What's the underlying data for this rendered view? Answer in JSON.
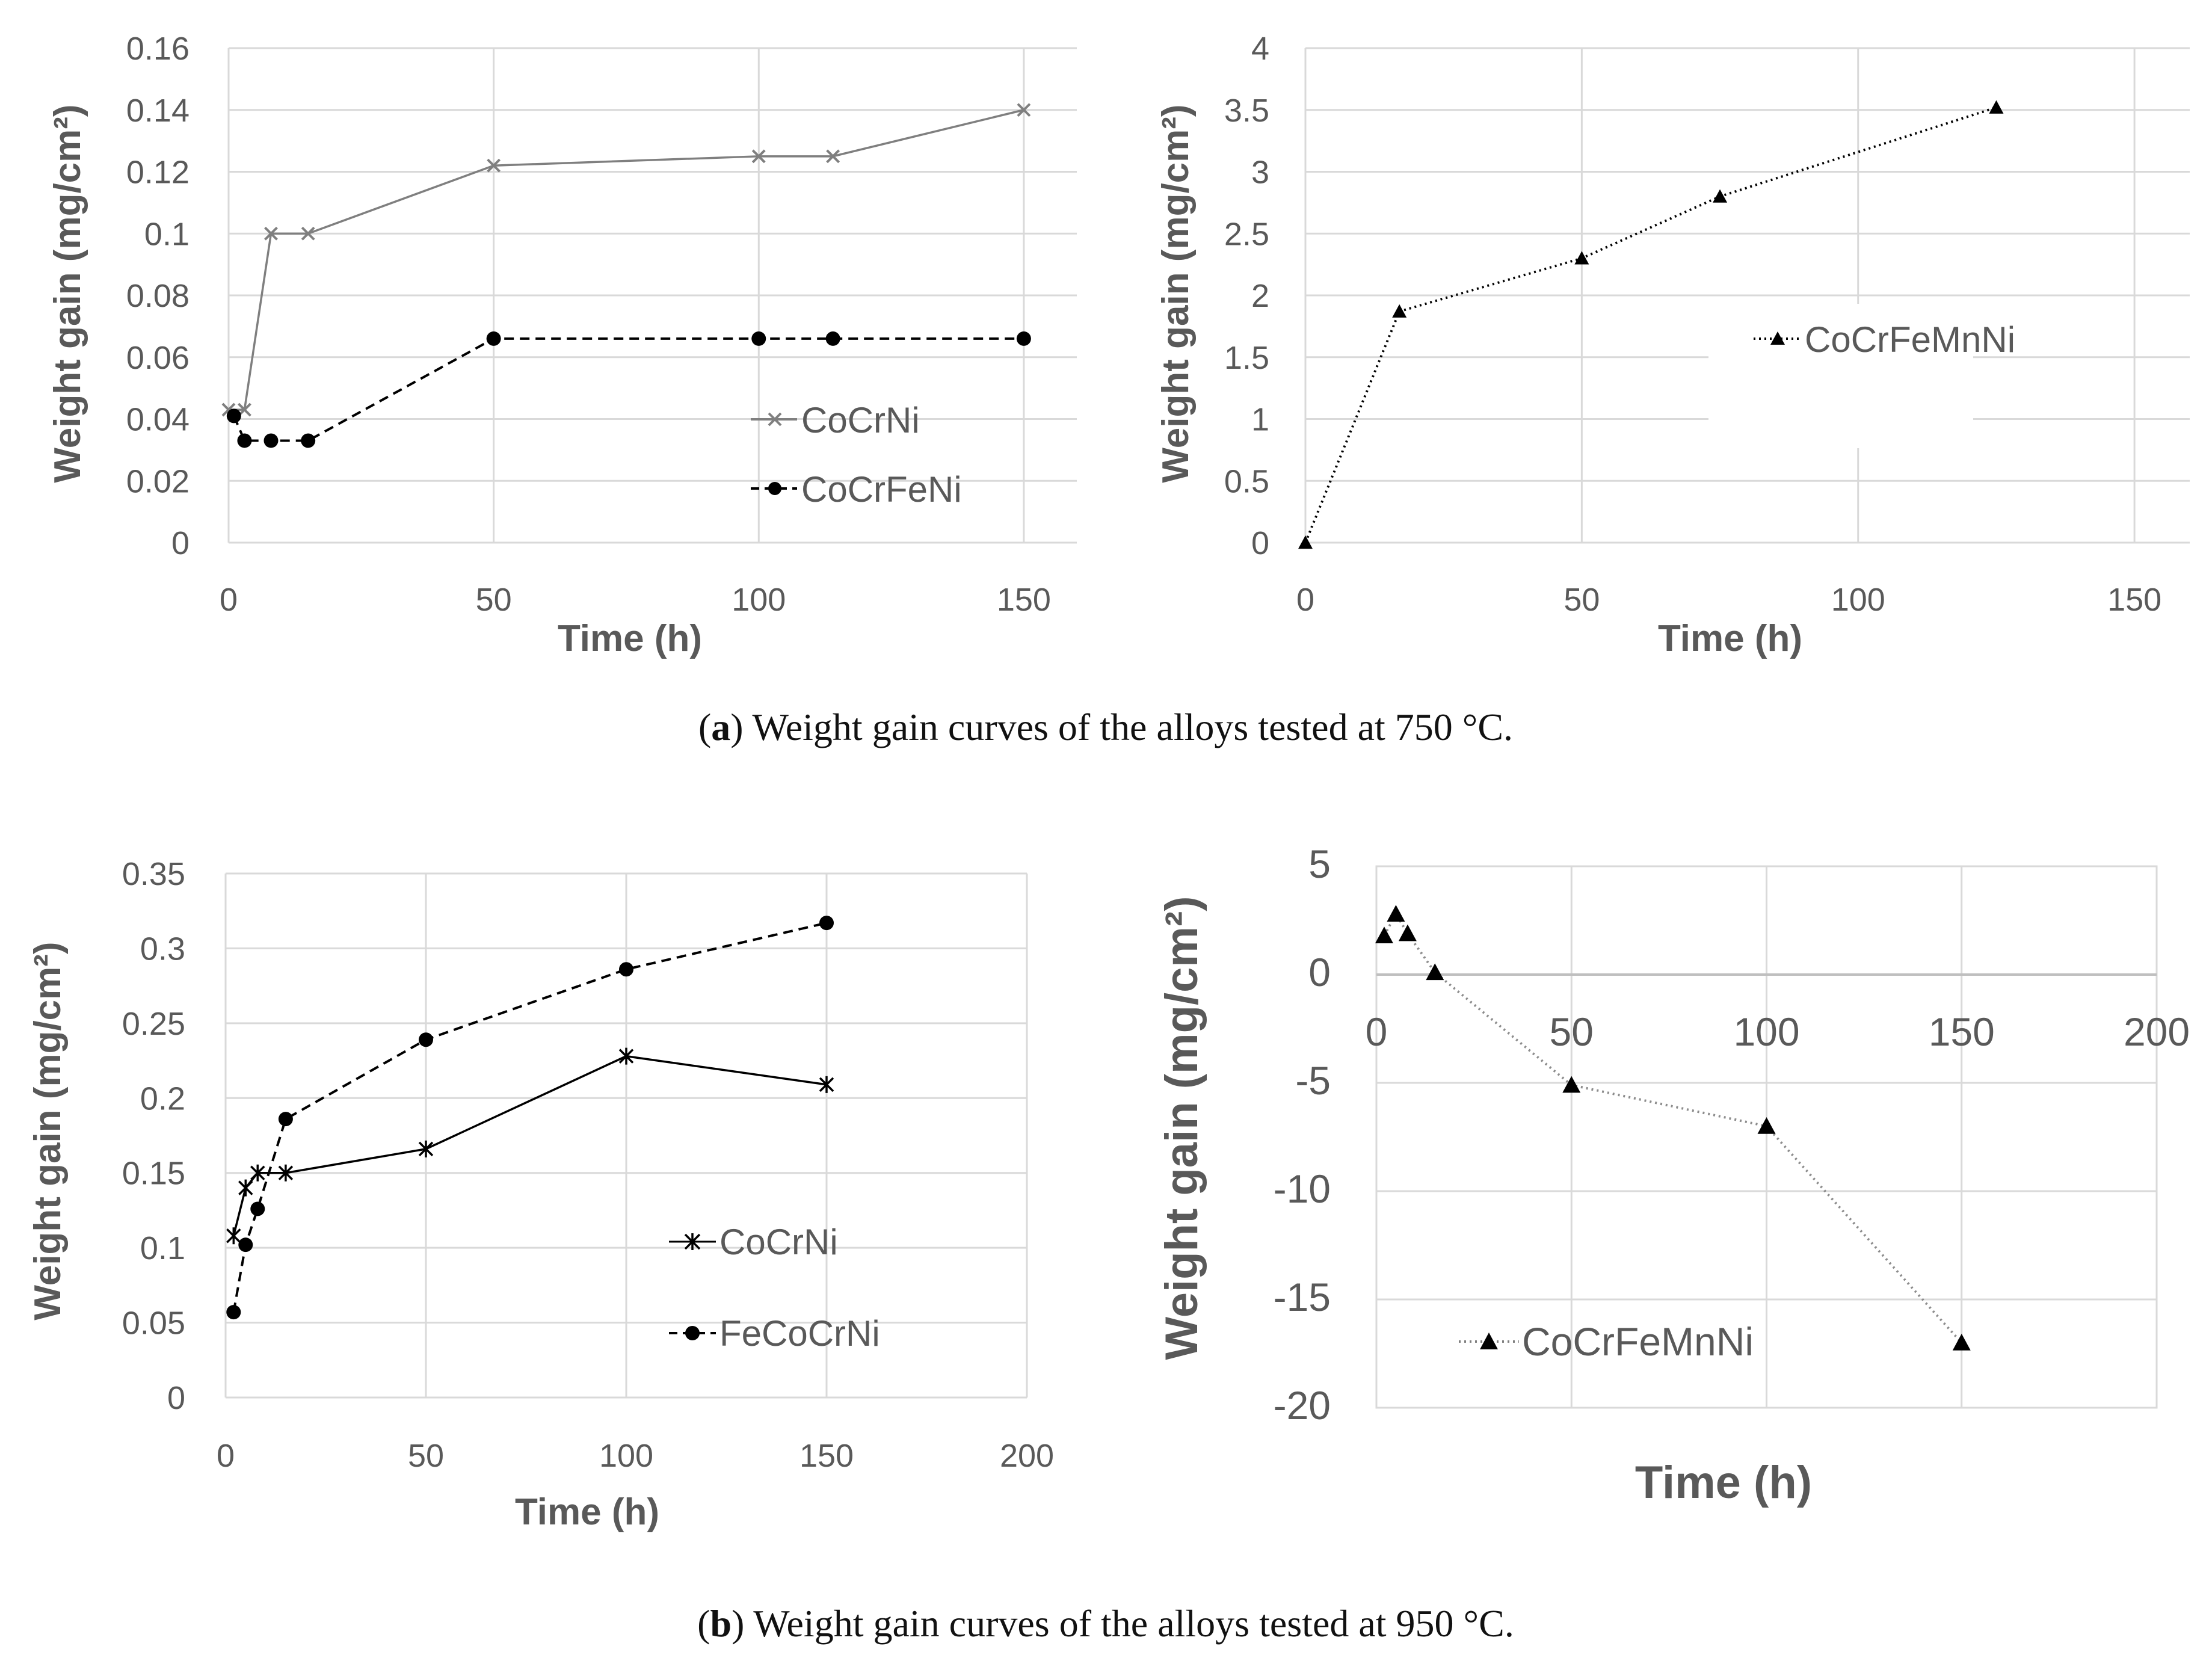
{
  "captions": {
    "a_letter": "a",
    "a_text": " Weight gain curves of the alloys tested at 750 °C.",
    "b_letter": "b",
    "b_text": " Weight gain curves of the alloys tested at 950 °C."
  },
  "chart_data": [
    {
      "id": "a-left",
      "type": "line",
      "panel": "a",
      "xlabel": "Time (h)",
      "ylabel": "Weight gain (mg/cm²)",
      "xlim": [
        0,
        160
      ],
      "ylim": [
        0,
        0.16
      ],
      "xticks": [
        0,
        50,
        100,
        150
      ],
      "xtick_labels": [
        "0",
        "50",
        "100",
        "150"
      ],
      "yticks": [
        0,
        0.02,
        0.04,
        0.06,
        0.08,
        0.1,
        0.12,
        0.14,
        0.16
      ],
      "ytick_labels": [
        "0",
        "0.02",
        "0.04",
        "0.06",
        "0.08",
        "0.1",
        "0.12",
        "0.14",
        "0.16"
      ],
      "legend_position": "lower-right",
      "series": [
        {
          "name": "CoCrNi",
          "color": "#7f7f7f",
          "line": "solid",
          "marker": "x",
          "x": [
            0,
            3,
            8,
            15,
            50,
            100,
            114,
            150
          ],
          "y": [
            0.043,
            0.043,
            0.1,
            0.1,
            0.122,
            0.125,
            0.125,
            0.14
          ]
        },
        {
          "name": "CoCrFeNi",
          "color": "#000000",
          "line": "dashed",
          "marker": "circle",
          "x": [
            1,
            3,
            8,
            15,
            50,
            100,
            114,
            150
          ],
          "y": [
            0.041,
            0.033,
            0.033,
            0.033,
            0.066,
            0.066,
            0.066,
            0.066
          ]
        }
      ]
    },
    {
      "id": "a-right",
      "type": "line",
      "panel": "a",
      "xlabel": "Time (h)",
      "ylabel": "Weight gain (mg/cm²)",
      "xlim": [
        0,
        160
      ],
      "ylim": [
        0,
        4
      ],
      "xticks": [
        0,
        50,
        100,
        150
      ],
      "xtick_labels": [
        "0",
        "50",
        "100",
        "150"
      ],
      "yticks": [
        0,
        0.5,
        1,
        1.5,
        2,
        2.5,
        3,
        3.5,
        4
      ],
      "ytick_labels": [
        "0",
        "0.5",
        "1",
        "1.5",
        "2",
        "2.5",
        "3",
        "3.5",
        "4"
      ],
      "legend_position": "middle-right",
      "series": [
        {
          "name": "CoCrFeMnNi",
          "color": "#000000",
          "line": "dotted",
          "marker": "triangle",
          "x": [
            0,
            17,
            50,
            75,
            125
          ],
          "y": [
            0,
            1.87,
            2.3,
            2.8,
            3.52
          ]
        }
      ]
    },
    {
      "id": "b-left",
      "type": "line",
      "panel": "b",
      "xlabel": "Time (h)",
      "ylabel": "Weight gain (mg/cm²)",
      "xlim": [
        0,
        200
      ],
      "ylim": [
        0,
        0.35
      ],
      "xticks": [
        0,
        50,
        100,
        150,
        200
      ],
      "xtick_labels": [
        "0",
        "50",
        "100",
        "150",
        "200"
      ],
      "yticks": [
        0,
        0.05,
        0.1,
        0.15,
        0.2,
        0.25,
        0.3,
        0.35
      ],
      "ytick_labels": [
        "0",
        "0.05",
        "0.1",
        "0.15",
        "0.2",
        "0.25",
        "0.3",
        "0.35"
      ],
      "legend_position": "lower-right",
      "series": [
        {
          "name": "CoCrNi",
          "color": "#000000",
          "line": "solid",
          "marker": "asterisk",
          "x": [
            2,
            5,
            8,
            15,
            50,
            100,
            150
          ],
          "y": [
            0.108,
            0.14,
            0.15,
            0.15,
            0.166,
            0.228,
            0.209
          ]
        },
        {
          "name": "FeCoCrNi",
          "color": "#000000",
          "line": "dashed",
          "marker": "circle",
          "x": [
            2,
            5,
            8,
            15,
            50,
            100,
            150
          ],
          "y": [
            0.057,
            0.102,
            0.126,
            0.186,
            0.239,
            0.286,
            0.317
          ]
        }
      ]
    },
    {
      "id": "b-right",
      "type": "line",
      "panel": "b",
      "xlabel": "Time (h)",
      "ylabel": "Weight gain (mg/cm²)",
      "xlim": [
        0,
        200
      ],
      "ylim": [
        -20,
        5
      ],
      "xticks": [
        0,
        50,
        100,
        150,
        200
      ],
      "xtick_labels": [
        "0",
        "50",
        "100",
        "150",
        "200"
      ],
      "yticks": [
        -20,
        -15,
        -10,
        -5,
        0,
        5
      ],
      "ytick_labels": [
        "-20",
        "-15",
        "-10",
        "-5",
        "0",
        "5"
      ],
      "legend_position": "bottom-left",
      "series": [
        {
          "name": "CoCrFeMnNi",
          "color": "#000000",
          "line": "dotted-gray",
          "marker": "triangle",
          "x": [
            2,
            5,
            8,
            15,
            50,
            100,
            150
          ],
          "y": [
            1.8,
            2.8,
            1.9,
            0.1,
            -5.1,
            -7.0,
            -17.0
          ]
        }
      ]
    }
  ]
}
